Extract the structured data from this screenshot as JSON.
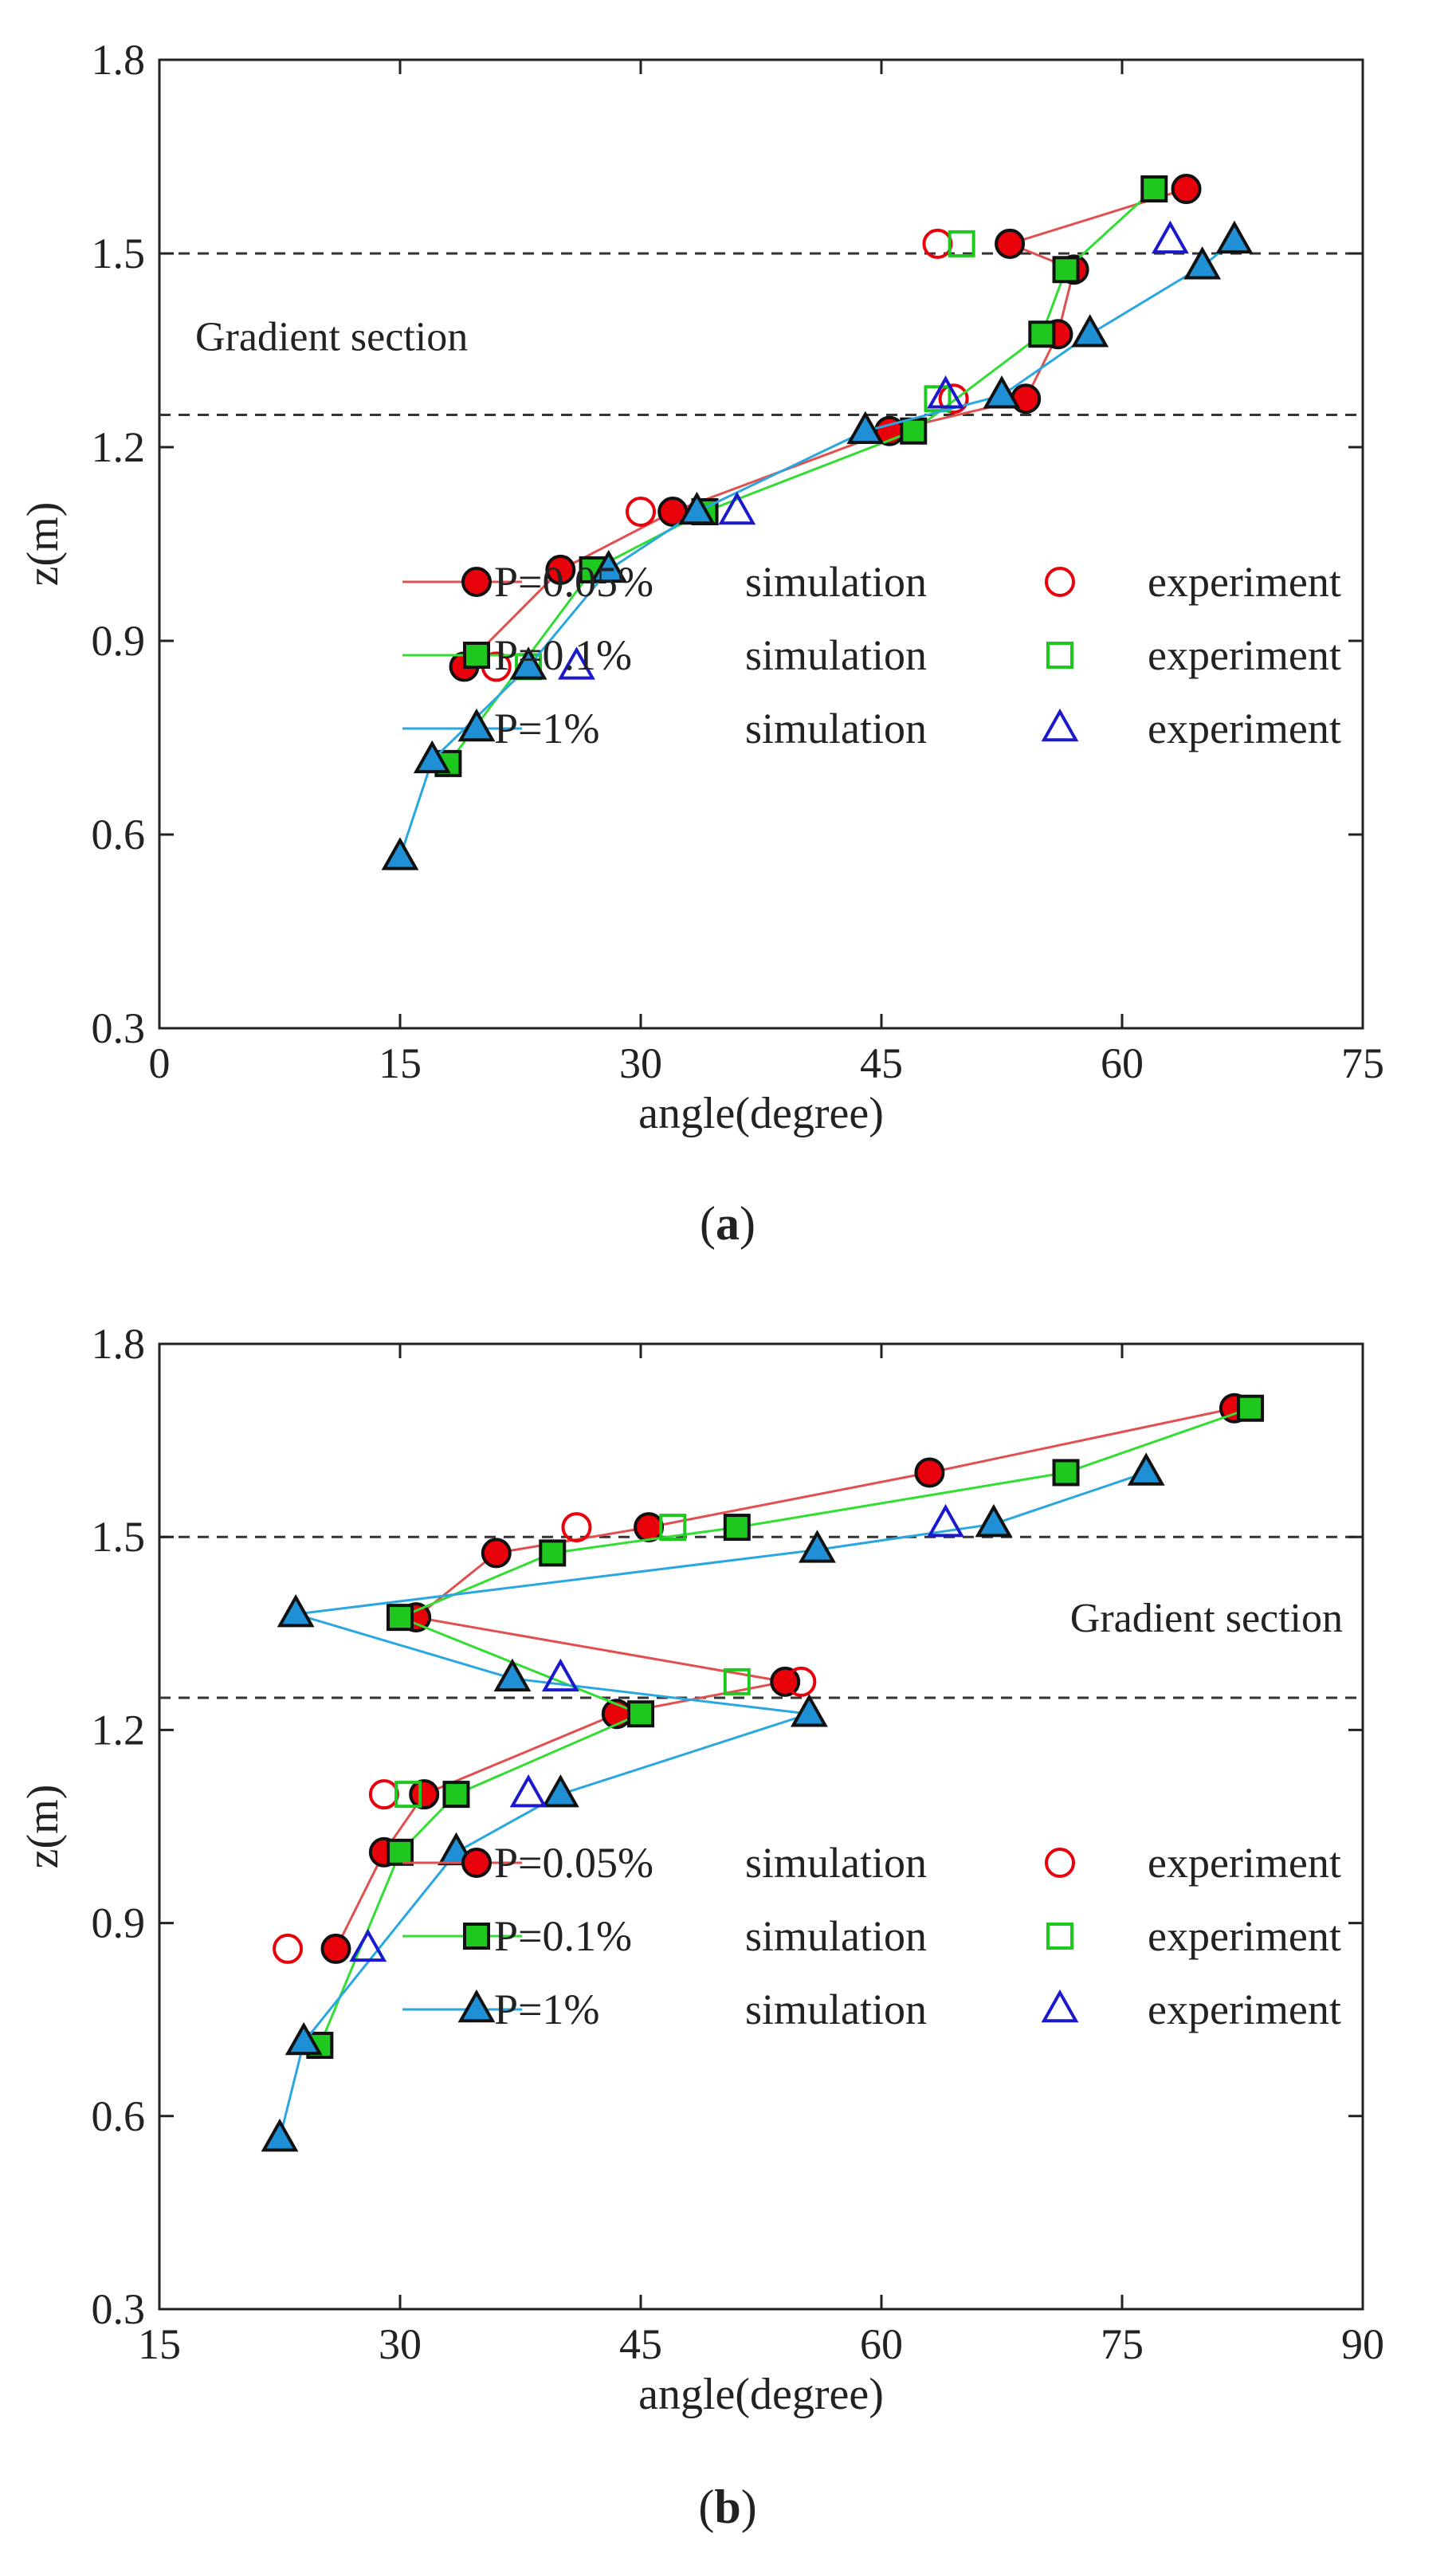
{
  "chart_data": [
    {
      "type": "line",
      "panel_label": "a",
      "xlabel": "angle(degree)",
      "ylabel": "z(m)",
      "xlim": [
        0,
        75
      ],
      "ylim": [
        0.3,
        1.8
      ],
      "xticks": [
        "0",
        "15",
        "30",
        "45",
        "60",
        "75"
      ],
      "yticks": [
        "0.3",
        "0.6",
        "0.9",
        "1.2",
        "1.5",
        "1.8"
      ],
      "reference_lines_z": [
        1.25,
        1.5
      ],
      "annotation": "Gradient section",
      "legend_position": "lower-right",
      "legend": [
        {
          "label": "P=0.05%",
          "sim_text": "simulation",
          "exp_text": "experiment"
        },
        {
          "label": "P=0.1%",
          "sim_text": "simulation",
          "exp_text": "experiment"
        },
        {
          "label": "P=1%",
          "sim_text": "simulation",
          "exp_text": "experiment"
        }
      ],
      "series": [
        {
          "name": "P=0.05% simulation",
          "marker": "circle",
          "filled": true,
          "color": "#e8000b",
          "line": "#e05050",
          "x": [
            19,
            25,
            32,
            45.5,
            54,
            56,
            57,
            53,
            64
          ],
          "y": [
            0.86,
            1.01,
            1.1,
            1.225,
            1.275,
            1.375,
            1.475,
            1.515,
            1.6
          ]
        },
        {
          "name": "P=0.05% experiment",
          "marker": "circle",
          "filled": false,
          "color": "#e8000b",
          "x": [
            21,
            30,
            49.5,
            48.5
          ],
          "y": [
            0.86,
            1.1,
            1.275,
            1.515
          ]
        },
        {
          "name": "P=0.1% simulation",
          "marker": "square",
          "filled": true,
          "color": "#1ec81e",
          "line": "#33dd33",
          "x": [
            18,
            27,
            34,
            47,
            55,
            56.5,
            62
          ],
          "y": [
            0.71,
            1.01,
            1.1,
            1.225,
            1.375,
            1.475,
            1.6
          ]
        },
        {
          "name": "P=0.1% experiment",
          "marker": "square",
          "filled": false,
          "color": "#1ec81e",
          "x": [
            23,
            48.5,
            50
          ],
          "y": [
            0.86,
            1.275,
            1.515
          ]
        },
        {
          "name": "P=1% simulation",
          "marker": "triangle",
          "filled": true,
          "color": "#1f8fd6",
          "line": "#2aa7e0",
          "x": [
            15,
            17,
            23,
            28,
            33.5,
            44,
            52.5,
            58,
            65,
            67
          ],
          "y": [
            0.565,
            0.715,
            0.86,
            1.01,
            1.1,
            1.225,
            1.28,
            1.375,
            1.48,
            1.52
          ]
        },
        {
          "name": "P=1% experiment",
          "marker": "triangle",
          "filled": false,
          "color": "#1a1acc",
          "x": [
            26,
            36,
            49,
            63
          ],
          "y": [
            0.86,
            1.1,
            1.28,
            1.52
          ]
        }
      ]
    },
    {
      "type": "line",
      "panel_label": "b",
      "xlabel": "angle(degree)",
      "ylabel": "z(m)",
      "xlim": [
        15,
        90
      ],
      "ylim": [
        0.3,
        1.8
      ],
      "xticks": [
        "15",
        "30",
        "45",
        "60",
        "75",
        "90"
      ],
      "yticks": [
        "0.3",
        "0.6",
        "0.9",
        "1.2",
        "1.5",
        "1.8"
      ],
      "reference_lines_z": [
        1.25,
        1.5
      ],
      "annotation": "Gradient section",
      "legend_position": "lower-right",
      "legend": [
        {
          "label": "P=0.05%",
          "sim_text": "simulation",
          "exp_text": "experiment"
        },
        {
          "label": "P=0.1%",
          "sim_text": "simulation",
          "exp_text": "experiment"
        },
        {
          "label": "P=1%",
          "sim_text": "simulation",
          "exp_text": "experiment"
        }
      ],
      "series": [
        {
          "name": "P=0.05% simulation",
          "marker": "circle",
          "filled": true,
          "color": "#e8000b",
          "line": "#e05050",
          "x": [
            26,
            29,
            31.5,
            43.5,
            54,
            31,
            36,
            45.5,
            63,
            82
          ],
          "y": [
            0.86,
            1.01,
            1.1,
            1.225,
            1.275,
            1.375,
            1.475,
            1.515,
            1.6,
            1.7
          ]
        },
        {
          "name": "P=0.05% experiment",
          "marker": "circle",
          "filled": false,
          "color": "#e8000b",
          "x": [
            23,
            29,
            55,
            41
          ],
          "y": [
            0.86,
            1.1,
            1.275,
            1.515
          ]
        },
        {
          "name": "P=0.1% simulation",
          "marker": "square",
          "filled": true,
          "color": "#1ec81e",
          "line": "#33dd33",
          "x": [
            25,
            30,
            33.5,
            45,
            30,
            39.5,
            51,
            71.5,
            83
          ],
          "y": [
            0.71,
            1.01,
            1.1,
            1.225,
            1.375,
            1.475,
            1.515,
            1.6,
            1.7
          ]
        },
        {
          "name": "P=0.1% experiment",
          "marker": "square",
          "filled": false,
          "color": "#1ec81e",
          "x": [
            30.5,
            51,
            47
          ],
          "y": [
            1.1,
            1.275,
            1.515
          ]
        },
        {
          "name": "P=1% simulation",
          "marker": "triangle",
          "filled": true,
          "color": "#1f8fd6",
          "line": "#2aa7e0",
          "x": [
            22.5,
            24,
            33.5,
            40,
            55.5,
            37,
            23.5,
            56,
            67,
            76.5
          ],
          "y": [
            0.565,
            0.715,
            1.01,
            1.1,
            1.225,
            1.28,
            1.38,
            1.48,
            1.52,
            1.6
          ]
        },
        {
          "name": "P=1% experiment",
          "marker": "triangle",
          "filled": false,
          "color": "#1a1acc",
          "x": [
            28,
            38,
            40,
            64
          ],
          "y": [
            0.86,
            1.1,
            1.28,
            1.52
          ]
        }
      ]
    }
  ]
}
